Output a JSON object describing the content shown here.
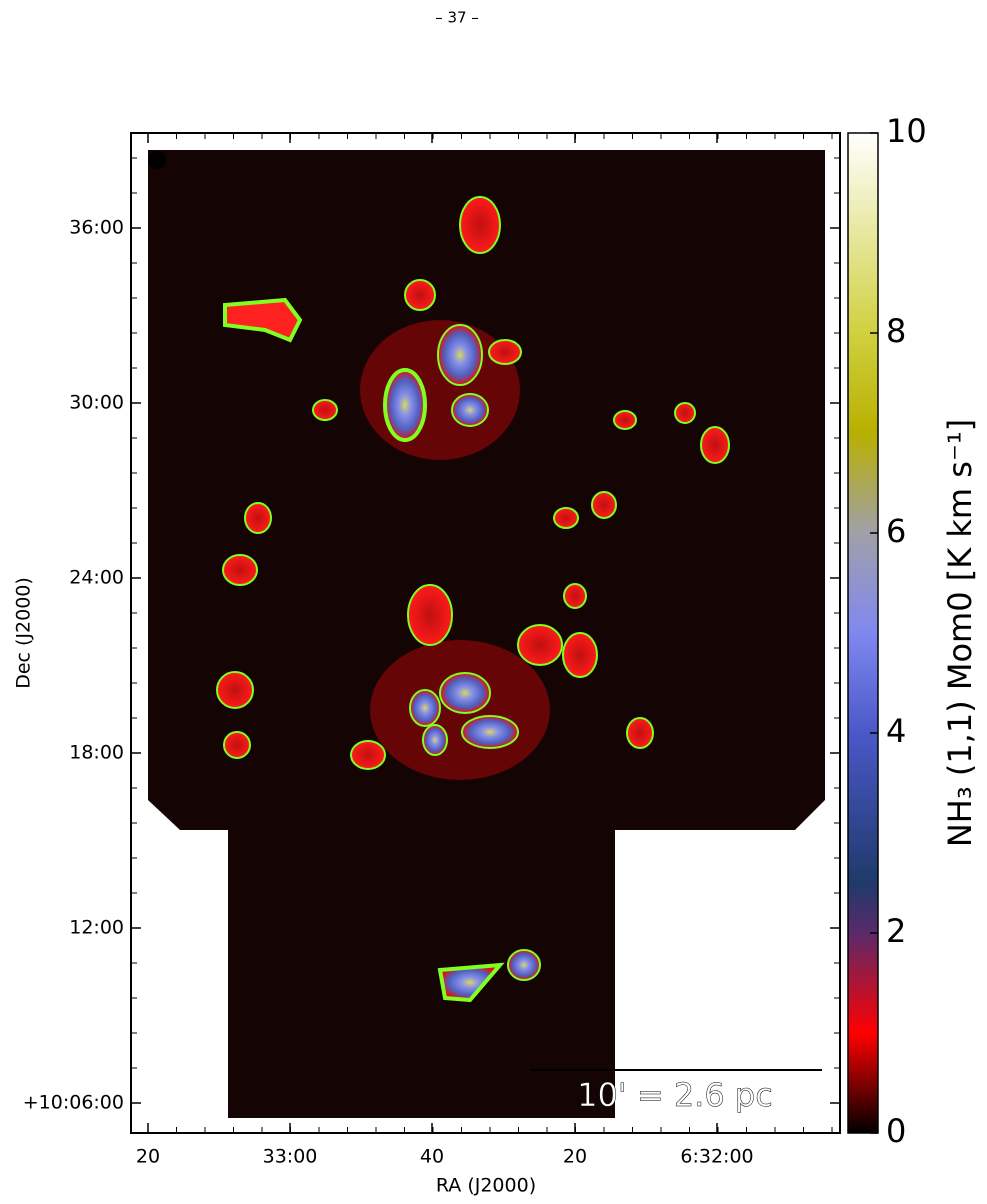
{
  "header": "– 37 –",
  "chart_data": {
    "type": "image",
    "xlabel": "RA (J2000)",
    "ylabel": "Dec (J2000)",
    "xtick_labels": [
      "20",
      "33:00",
      "40",
      "20",
      "6:32:00"
    ],
    "ytick_labels": [
      "+10:06:00",
      "12:00",
      "18:00",
      "24:00",
      "30:00",
      "36:00"
    ],
    "colorbar_label": "NH₃ (1,1) Mom0 [K km s⁻¹]",
    "clim": [
      0,
      10
    ],
    "cticks": [
      0,
      2,
      4,
      6,
      8,
      10
    ],
    "scalebar_label": "10' = 2.6 pc"
  }
}
